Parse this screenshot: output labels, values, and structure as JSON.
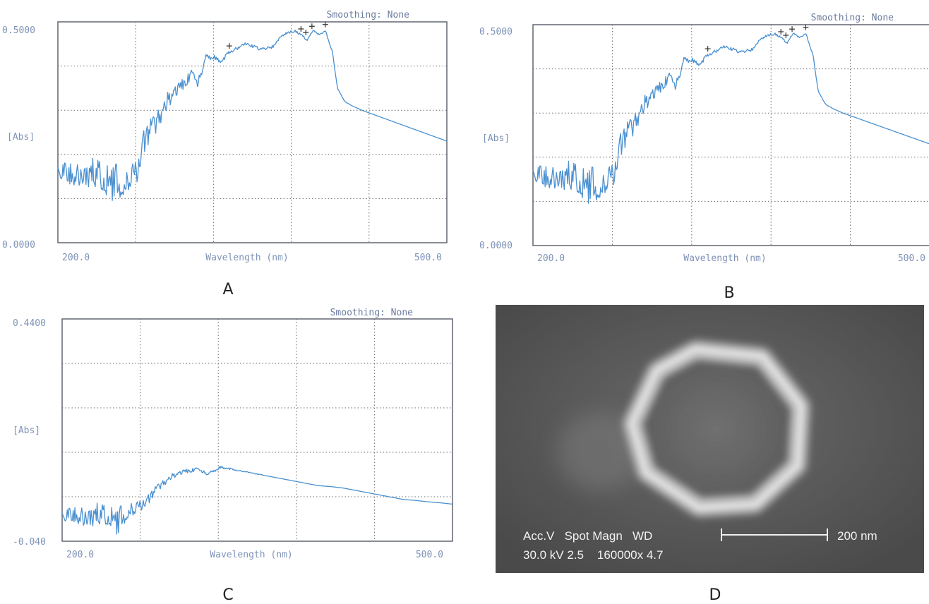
{
  "chart_data": [
    {
      "panel": "A",
      "type": "line",
      "smoothing_label": "Smoothing: None",
      "ylabel": "[Abs]",
      "xlabel": "Wavelength (nm)",
      "y_tick_top": "0.5000",
      "y_tick_bottom": "0.0000",
      "x_tick_left": "200.0",
      "x_tick_right": "500.0",
      "xlim": [
        190,
        510
      ],
      "ylim": [
        0,
        0.5
      ],
      "grid": true,
      "peak_markers_x": [
        331,
        390,
        394,
        399,
        410
      ],
      "series": [
        {
          "color": "#4a90d0",
          "x": [
            190,
            200,
            210,
            220,
            228,
            233,
            238,
            245,
            252,
            256,
            260,
            270,
            280,
            290,
            300,
            305,
            312,
            318,
            325,
            330,
            337,
            345,
            355,
            365,
            375,
            385,
            390,
            395,
            400,
            405,
            410,
            416,
            420,
            426,
            432,
            440,
            450,
            460,
            470,
            480,
            490,
            500,
            510
          ],
          "y": [
            0.17,
            0.16,
            0.15,
            0.16,
            0.15,
            0.135,
            0.14,
            0.135,
            0.155,
            0.17,
            0.23,
            0.27,
            0.32,
            0.35,
            0.38,
            0.36,
            0.42,
            0.42,
            0.41,
            0.43,
            0.44,
            0.45,
            0.44,
            0.44,
            0.47,
            0.48,
            0.47,
            0.46,
            0.48,
            0.47,
            0.48,
            0.43,
            0.35,
            0.32,
            0.31,
            0.3,
            0.29,
            0.28,
            0.27,
            0.26,
            0.25,
            0.24,
            0.23
          ],
          "noise": [
            0.02,
            0.03,
            0.025,
            0.035,
            0.04,
            0.045,
            0.04,
            0.03,
            0.03,
            0.03,
            0.03,
            0.025,
            0.02,
            0.015,
            0.012,
            0.012,
            0.008,
            0.006,
            0.005,
            0.004,
            0.004,
            0.004,
            0.004,
            0.005,
            0.004,
            0.003,
            0.003,
            0.003,
            0.002,
            0.002,
            0.002,
            0.002,
            0.001,
            0.001,
            0,
            0,
            0,
            0,
            0,
            0,
            0,
            0,
            0
          ]
        }
      ]
    },
    {
      "panel": "B",
      "type": "line",
      "smoothing_label": "Smoothing: None",
      "ylabel": "[Abs]",
      "xlabel": "Wavelength (nm)",
      "y_tick_top": "0.5000",
      "y_tick_bottom": "0.0000",
      "x_tick_left": "200.0",
      "x_tick_right": "500.0",
      "xlim": [
        190,
        510
      ],
      "ylim": [
        0,
        0.5
      ],
      "grid": true,
      "peak_markers_x": [
        331,
        390,
        394,
        399,
        410
      ],
      "series": [
        {
          "color": "#4a90d0",
          "x": [
            190,
            200,
            210,
            220,
            228,
            233,
            238,
            245,
            252,
            256,
            260,
            270,
            280,
            290,
            300,
            305,
            312,
            318,
            325,
            330,
            337,
            345,
            355,
            365,
            375,
            385,
            390,
            395,
            400,
            405,
            410,
            416,
            420,
            426,
            432,
            440,
            450,
            460,
            470,
            480,
            490,
            500,
            510
          ],
          "y": [
            0.17,
            0.16,
            0.15,
            0.16,
            0.15,
            0.135,
            0.14,
            0.135,
            0.155,
            0.17,
            0.23,
            0.27,
            0.32,
            0.35,
            0.38,
            0.36,
            0.42,
            0.42,
            0.41,
            0.43,
            0.44,
            0.45,
            0.44,
            0.44,
            0.47,
            0.48,
            0.47,
            0.46,
            0.48,
            0.47,
            0.48,
            0.43,
            0.35,
            0.32,
            0.31,
            0.3,
            0.29,
            0.28,
            0.27,
            0.26,
            0.25,
            0.24,
            0.23
          ],
          "noise": [
            0.02,
            0.03,
            0.025,
            0.035,
            0.04,
            0.045,
            0.04,
            0.03,
            0.03,
            0.03,
            0.03,
            0.025,
            0.02,
            0.015,
            0.012,
            0.012,
            0.008,
            0.006,
            0.005,
            0.004,
            0.004,
            0.004,
            0.004,
            0.005,
            0.004,
            0.003,
            0.003,
            0.003,
            0.002,
            0.002,
            0.002,
            0.002,
            0.001,
            0.001,
            0,
            0,
            0,
            0,
            0,
            0,
            0,
            0,
            0
          ]
        }
      ]
    },
    {
      "panel": "C",
      "type": "line",
      "smoothing_label": "Smoothing: None",
      "ylabel": "[Abs]",
      "xlabel": "Wavelength (nm)",
      "y_tick_top": "0.4400",
      "y_tick_bottom": "-0.040",
      "x_tick_left": "200.0",
      "x_tick_right": "500.0",
      "xlim": [
        190,
        510
      ],
      "ylim": [
        -0.04,
        0.44
      ],
      "grid": true,
      "peak_markers_x": [],
      "series": [
        {
          "color": "#4a90d0",
          "x": [
            190,
            200,
            210,
            220,
            230,
            236,
            240,
            245,
            250,
            260,
            270,
            280,
            290,
            300,
            310,
            320,
            330,
            340,
            350,
            360,
            370,
            380,
            390,
            400,
            410,
            420,
            430,
            440,
            450,
            460,
            470,
            480,
            490,
            500,
            510
          ],
          "y": [
            0.02,
            0.02,
            0.01,
            0.02,
            0.015,
            0.0,
            0.02,
            0.03,
            0.03,
            0.05,
            0.08,
            0.1,
            0.11,
            0.115,
            0.105,
            0.12,
            0.115,
            0.11,
            0.105,
            0.1,
            0.095,
            0.09,
            0.085,
            0.08,
            0.078,
            0.075,
            0.07,
            0.065,
            0.06,
            0.055,
            0.05,
            0.048,
            0.045,
            0.043,
            0.04
          ],
          "noise": [
            0.015,
            0.02,
            0.022,
            0.025,
            0.025,
            0.03,
            0.025,
            0.02,
            0.015,
            0.012,
            0.008,
            0.006,
            0.005,
            0.004,
            0.004,
            0.003,
            0.002,
            0.001,
            0.001,
            0,
            0,
            0,
            0,
            0,
            0,
            0,
            0,
            0,
            0,
            0,
            0,
            0,
            0,
            0,
            0
          ]
        }
      ]
    }
  ],
  "micrograph": {
    "panel": "D",
    "info_row1": "Acc.V   Spot Magn   WD",
    "info_row2": "30.0 kV 2.5    160000x 4.7",
    "scalebar_label": "200 nm"
  },
  "colors": {
    "trace": "#4a90d0",
    "axis_text": "#7f93b8",
    "sem_background": "#5c5c5c",
    "sem_ring": "#d8d8d8"
  }
}
